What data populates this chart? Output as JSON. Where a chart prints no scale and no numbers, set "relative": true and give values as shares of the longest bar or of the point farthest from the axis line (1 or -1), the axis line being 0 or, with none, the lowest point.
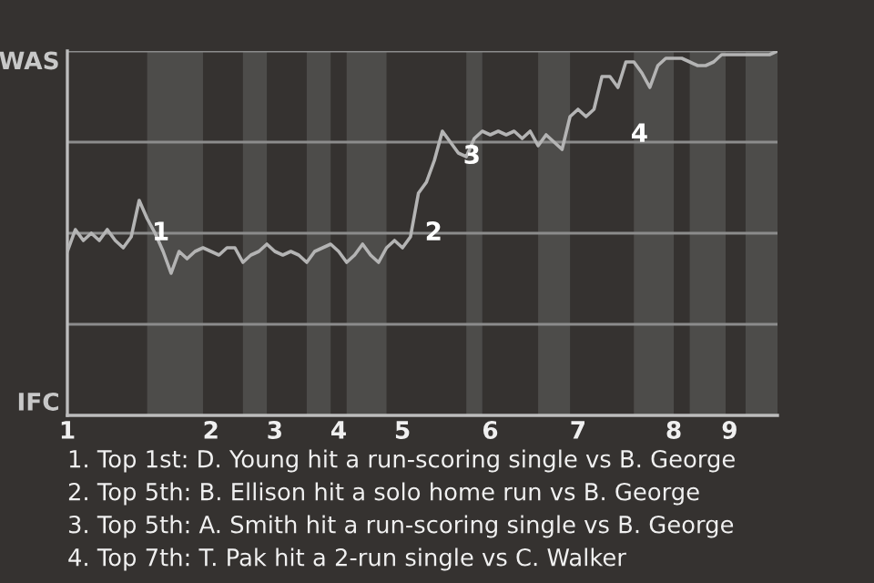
{
  "chart_data": {
    "type": "line",
    "relative": true,
    "categories": [
      "1",
      null,
      null,
      null,
      null,
      null,
      null,
      null,
      null,
      null,
      null,
      null,
      null,
      null,
      null,
      null,
      null,
      null,
      "2",
      null,
      null,
      null,
      null,
      null,
      null,
      null,
      "3",
      null,
      null,
      null,
      null,
      null,
      null,
      null,
      "4",
      null,
      null,
      null,
      null,
      null,
      null,
      null,
      "5",
      null,
      null,
      null,
      null,
      null,
      null,
      null,
      null,
      null,
      null,
      "6",
      null,
      null,
      null,
      null,
      null,
      null,
      null,
      null,
      null,
      null,
      "7",
      null,
      null,
      null,
      null,
      null,
      null,
      null,
      null,
      null,
      null,
      null,
      "8",
      null,
      null,
      null,
      null,
      null,
      null,
      "9",
      null,
      null,
      null,
      null,
      null,
      null
    ],
    "series": [
      {
        "color": "#b4b4b4",
        "values": [
          0.45,
          0.51,
          0.48,
          0.5,
          0.48,
          0.51,
          0.48,
          0.46,
          0.49,
          0.59,
          0.54,
          0.5,
          0.45,
          0.39,
          0.45,
          0.43,
          0.45,
          0.46,
          0.45,
          0.44,
          0.46,
          0.46,
          0.42,
          0.44,
          0.45,
          0.47,
          0.45,
          0.44,
          0.45,
          0.44,
          0.42,
          0.45,
          0.46,
          0.47,
          0.45,
          0.42,
          0.44,
          0.47,
          0.44,
          0.42,
          0.46,
          0.48,
          0.46,
          0.49,
          0.61,
          0.64,
          0.7,
          0.78,
          0.75,
          0.72,
          0.71,
          0.76,
          0.78,
          0.77,
          0.78,
          0.77,
          0.78,
          0.76,
          0.78,
          0.74,
          0.77,
          0.75,
          0.73,
          0.82,
          0.84,
          0.82,
          0.84,
          0.93,
          0.93,
          0.9,
          0.97,
          0.97,
          0.94,
          0.9,
          0.96,
          0.98,
          0.98,
          0.98,
          0.97,
          0.96,
          0.96,
          0.97,
          0.99,
          0.99,
          0.99,
          0.99,
          0.99,
          0.99,
          0.99,
          1.0
        ],
        "line_style": "solid"
      }
    ],
    "ref_lines": [
      {
        "axis": "y",
        "value": 0.25,
        "color": "#8c8c8c"
      },
      {
        "axis": "y",
        "value": 0.5,
        "color": "#8c8c8c"
      },
      {
        "axis": "y",
        "value": 0.75,
        "color": "#8c8c8c"
      },
      {
        "axis": "y",
        "value": 1,
        "color": "#8c8c8c"
      }
    ],
    "annotations": [
      "WAS",
      "IFC",
      "1",
      "2",
      "3",
      "4",
      "1. Top 1st: D. Young hit a run-scoring single vs B. George",
      "2. Top 5th: B. Ellison hit a solo home run vs B. George",
      "3. Top 5th: A. Smith hit a run-scoring single vs B. George",
      "4. Top 7th: T. Pak hit a 2-run single vs C. Walker"
    ]
  }
}
